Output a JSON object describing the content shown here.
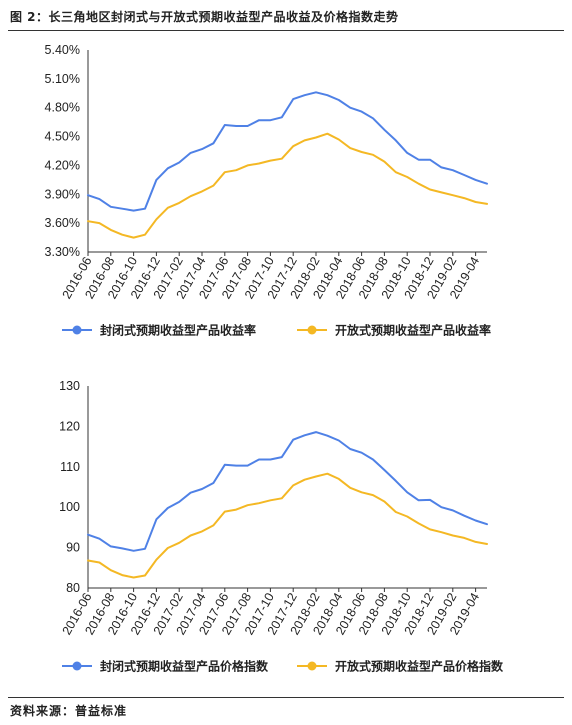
{
  "figure_title": "图 2：长三角地区封闭式与开放式预期收益型产品收益及价格指数走势",
  "source": "资料来源：普益标准",
  "chart_data": [
    {
      "type": "line",
      "x": [
        "2016-06",
        "2016-07",
        "2016-08",
        "2016-09",
        "2016-10",
        "2016-11",
        "2016-12",
        "2017-01",
        "2017-02",
        "2017-03",
        "2017-04",
        "2017-05",
        "2017-06",
        "2017-07",
        "2017-08",
        "2017-09",
        "2017-10",
        "2017-11",
        "2017-12",
        "2018-01",
        "2018-02",
        "2018-03",
        "2018-04",
        "2018-05",
        "2018-06",
        "2018-07",
        "2018-08",
        "2018-09",
        "2018-10",
        "2018-11",
        "2018-12",
        "2019-01",
        "2019-02",
        "2019-03",
        "2019-04",
        "2019-05"
      ],
      "xticks": [
        "2016-06",
        "2016-08",
        "2016-10",
        "2016-12",
        "2017-02",
        "2017-04",
        "2017-06",
        "2017-08",
        "2017-10",
        "2017-12",
        "2018-02",
        "2018-04",
        "2018-06",
        "2018-08",
        "2018-10",
        "2018-12",
        "2019-02",
        "2019-04"
      ],
      "yticks": [
        "3.30%",
        "3.60%",
        "3.90%",
        "4.20%",
        "4.50%",
        "4.80%",
        "5.10%",
        "5.40%"
      ],
      "ylim": [
        3.3,
        5.4
      ],
      "series": [
        {
          "name": "封闭式预期收益型产品收益率",
          "color": "#4f81e6",
          "values": [
            3.89,
            3.85,
            3.77,
            3.75,
            3.73,
            3.75,
            4.05,
            4.17,
            4.23,
            4.33,
            4.37,
            4.43,
            4.62,
            4.61,
            4.61,
            4.67,
            4.67,
            4.7,
            4.89,
            4.93,
            4.96,
            4.93,
            4.88,
            4.8,
            4.76,
            4.69,
            4.57,
            4.46,
            4.33,
            4.26,
            4.26,
            4.18,
            4.15,
            4.1,
            4.05,
            4.01
          ]
        },
        {
          "name": "开放式预期收益型产品收益率",
          "color": "#f4b824",
          "values": [
            3.62,
            3.6,
            3.53,
            3.48,
            3.45,
            3.48,
            3.64,
            3.76,
            3.81,
            3.88,
            3.93,
            3.99,
            4.13,
            4.15,
            4.2,
            4.22,
            4.25,
            4.27,
            4.4,
            4.46,
            4.49,
            4.53,
            4.47,
            4.38,
            4.34,
            4.31,
            4.24,
            4.13,
            4.08,
            4.01,
            3.95,
            3.92,
            3.89,
            3.86,
            3.82,
            3.8
          ]
        }
      ]
    },
    {
      "type": "line",
      "x": [
        "2016-06",
        "2016-07",
        "2016-08",
        "2016-09",
        "2016-10",
        "2016-11",
        "2016-12",
        "2017-01",
        "2017-02",
        "2017-03",
        "2017-04",
        "2017-05",
        "2017-06",
        "2017-07",
        "2017-08",
        "2017-09",
        "2017-10",
        "2017-11",
        "2017-12",
        "2018-01",
        "2018-02",
        "2018-03",
        "2018-04",
        "2018-05",
        "2018-06",
        "2018-07",
        "2018-08",
        "2018-09",
        "2018-10",
        "2018-11",
        "2018-12",
        "2019-01",
        "2019-02",
        "2019-03",
        "2019-04",
        "2019-05"
      ],
      "xticks": [
        "2016-06",
        "2016-08",
        "2016-10",
        "2016-12",
        "2017-02",
        "2017-04",
        "2017-06",
        "2017-08",
        "2017-10",
        "2017-12",
        "2018-02",
        "2018-04",
        "2018-06",
        "2018-08",
        "2018-10",
        "2018-12",
        "2019-02",
        "2019-04"
      ],
      "yticks": [
        "80",
        "90",
        "100",
        "110",
        "120",
        "130"
      ],
      "ylim": [
        80,
        130
      ],
      "series": [
        {
          "name": "封闭式预期收益型产品价格指数",
          "color": "#4f81e6",
          "values": [
            93.2,
            92.2,
            90.3,
            89.8,
            89.2,
            89.7,
            97.0,
            99.8,
            101.3,
            103.6,
            104.5,
            106.0,
            110.5,
            110.3,
            110.3,
            111.8,
            111.8,
            112.4,
            116.7,
            117.8,
            118.6,
            117.7,
            116.5,
            114.4,
            113.5,
            111.8,
            109.2,
            106.5,
            103.7,
            101.7,
            101.8,
            100.0,
            99.2,
            97.9,
            96.7,
            95.8
          ]
        },
        {
          "name": "开放式预期收益型产品价格指数",
          "color": "#f4b824",
          "values": [
            86.8,
            86.3,
            84.4,
            83.2,
            82.6,
            83.1,
            87.0,
            89.9,
            91.2,
            93.0,
            94.0,
            95.5,
            98.9,
            99.4,
            100.5,
            101.0,
            101.7,
            102.2,
            105.4,
            106.8,
            107.6,
            108.3,
            107.0,
            104.8,
            103.7,
            103.0,
            101.4,
            98.8,
            97.7,
            96.0,
            94.5,
            93.8,
            93.0,
            92.4,
            91.4,
            90.9
          ]
        }
      ]
    }
  ]
}
